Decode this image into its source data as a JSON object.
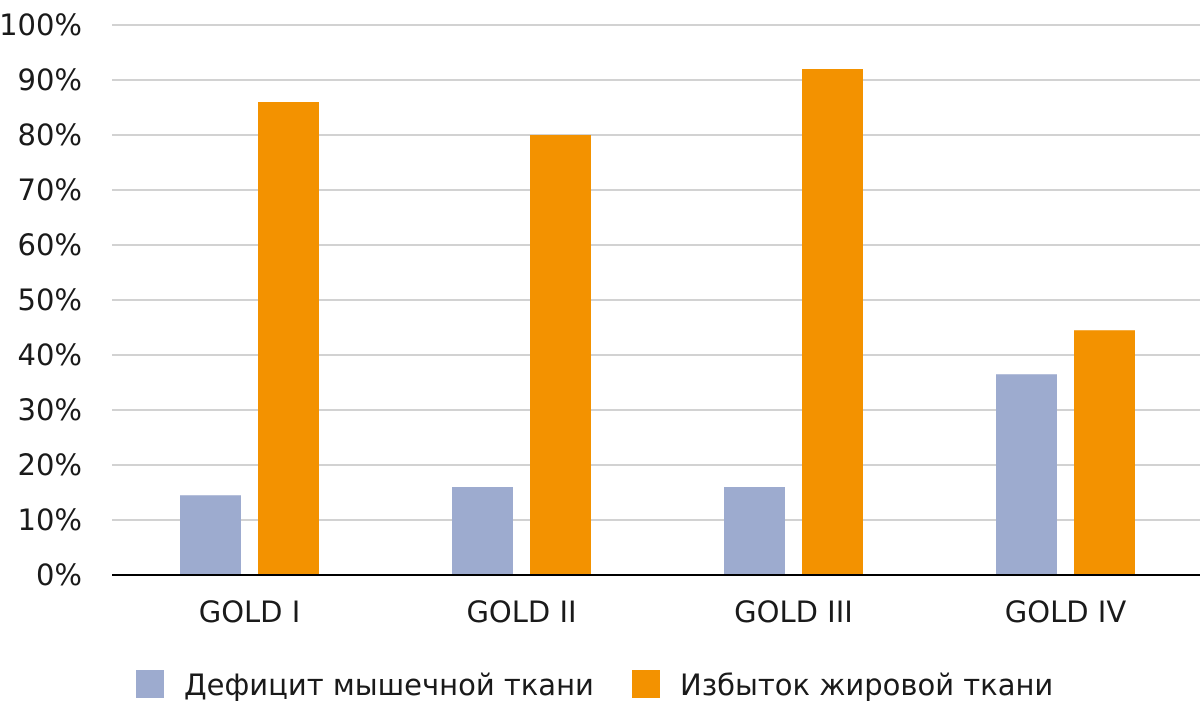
{
  "chart_data": {
    "type": "bar",
    "categories": [
      "GOLD I",
      "GOLD II",
      "GOLD III",
      "GOLD IV"
    ],
    "series": [
      {
        "name": "Дефицит мышечной ткани",
        "color": "#9dabcf",
        "values": [
          14.5,
          16,
          16,
          36.5
        ]
      },
      {
        "name": "Избыток жировой ткани",
        "color": "#f39200",
        "values": [
          86,
          80,
          92,
          44.5
        ]
      }
    ],
    "ylim": [
      0,
      100
    ],
    "yticks": [
      {
        "value": 0,
        "label": "0%"
      },
      {
        "value": 10,
        "label": "10%"
      },
      {
        "value": 20,
        "label": "20%"
      },
      {
        "value": 30,
        "label": "30%"
      },
      {
        "value": 40,
        "label": "40%"
      },
      {
        "value": 50,
        "label": "50%"
      },
      {
        "value": 60,
        "label": "60%"
      },
      {
        "value": 70,
        "label": "70%"
      },
      {
        "value": 80,
        "label": "80%"
      },
      {
        "value": 90,
        "label": "90%"
      },
      {
        "value": 100,
        "label": "100%"
      }
    ],
    "grid": true,
    "legend_position": "bottom"
  }
}
